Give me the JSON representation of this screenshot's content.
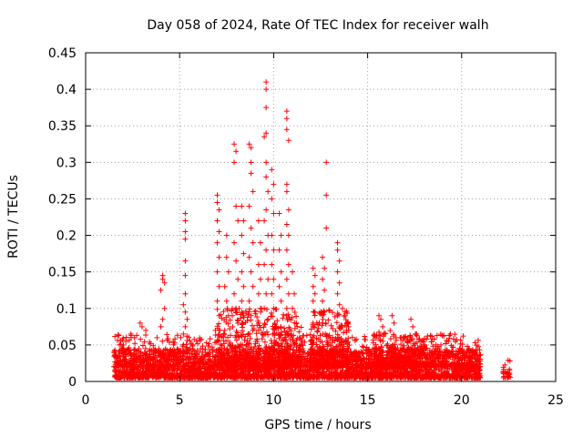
{
  "chart_data": {
    "type": "scatter",
    "title": "Day 058 of 2024, Rate Of TEC Index for receiver walh",
    "xlabel": "GPS time / hours",
    "ylabel": "ROTI / TECUs",
    "xlim": [
      0,
      25
    ],
    "ylim": [
      0,
      0.45
    ],
    "xticks": [
      "0",
      "5",
      "10",
      "15",
      "20",
      "25"
    ],
    "yticks": [
      "0",
      "0.05",
      "0.1",
      "0.15",
      "0.2",
      "0.25",
      "0.3",
      "0.35",
      "0.4",
      "0.45"
    ],
    "grid": true,
    "marker": "plus",
    "series_color": "#ff0000",
    "clusters": [
      {
        "x": [
          1.5,
          21.0
        ],
        "y": [
          0.005,
          0.045
        ],
        "count": 3200
      },
      {
        "x": [
          1.5,
          21.0
        ],
        "y": [
          0.02,
          0.065
        ],
        "count": 900
      },
      {
        "x": [
          7.0,
          11.5
        ],
        "y": [
          0.02,
          0.1
        ],
        "count": 500
      },
      {
        "x": [
          12.0,
          14.0
        ],
        "y": [
          0.02,
          0.1
        ],
        "count": 250
      },
      {
        "x": [
          15.3,
          18.2
        ],
        "y": [
          0.02,
          0.07
        ],
        "count": 200
      },
      {
        "x": [
          22.2,
          22.6
        ],
        "y": [
          0.005,
          0.03
        ],
        "count": 25
      }
    ],
    "points": [
      [
        4.1,
        0.145
      ],
      [
        4.1,
        0.14
      ],
      [
        4.2,
        0.135
      ],
      [
        4.0,
        0.125
      ],
      [
        4.2,
        0.1
      ],
      [
        4.1,
        0.085
      ],
      [
        4.0,
        0.075
      ],
      [
        3.8,
        0.06
      ],
      [
        2.9,
        0.08
      ],
      [
        3.0,
        0.075
      ],
      [
        3.2,
        0.07
      ],
      [
        2.6,
        0.06
      ],
      [
        5.3,
        0.23
      ],
      [
        5.3,
        0.22
      ],
      [
        5.3,
        0.205
      ],
      [
        5.3,
        0.195
      ],
      [
        5.3,
        0.165
      ],
      [
        5.3,
        0.145
      ],
      [
        5.3,
        0.12
      ],
      [
        5.2,
        0.105
      ],
      [
        5.3,
        0.095
      ],
      [
        5.4,
        0.085
      ],
      [
        5.3,
        0.075
      ],
      [
        5.2,
        0.065
      ],
      [
        7.0,
        0.255
      ],
      [
        7.0,
        0.245
      ],
      [
        7.1,
        0.235
      ],
      [
        7.0,
        0.22
      ],
      [
        7.1,
        0.205
      ],
      [
        7.0,
        0.19
      ],
      [
        7.1,
        0.17
      ],
      [
        7.0,
        0.15
      ],
      [
        7.1,
        0.13
      ],
      [
        7.0,
        0.11
      ],
      [
        7.1,
        0.09
      ],
      [
        6.9,
        0.07
      ],
      [
        7.5,
        0.2
      ],
      [
        7.5,
        0.17
      ],
      [
        7.6,
        0.15
      ],
      [
        7.4,
        0.13
      ],
      [
        7.5,
        0.11
      ],
      [
        7.6,
        0.09
      ],
      [
        7.4,
        0.07
      ],
      [
        7.9,
        0.325
      ],
      [
        8.0,
        0.315
      ],
      [
        7.9,
        0.3
      ],
      [
        8.0,
        0.24
      ],
      [
        8.1,
        0.22
      ],
      [
        7.9,
        0.19
      ],
      [
        8.0,
        0.165
      ],
      [
        8.1,
        0.14
      ],
      [
        7.9,
        0.12
      ],
      [
        8.0,
        0.1
      ],
      [
        8.1,
        0.08
      ],
      [
        8.3,
        0.24
      ],
      [
        8.4,
        0.22
      ],
      [
        8.3,
        0.2
      ],
      [
        8.4,
        0.175
      ],
      [
        8.3,
        0.15
      ],
      [
        8.4,
        0.13
      ],
      [
        8.3,
        0.11
      ],
      [
        8.4,
        0.09
      ],
      [
        8.7,
        0.325
      ],
      [
        8.8,
        0.32
      ],
      [
        8.8,
        0.3
      ],
      [
        8.8,
        0.285
      ],
      [
        8.9,
        0.26
      ],
      [
        8.7,
        0.24
      ],
      [
        8.8,
        0.21
      ],
      [
        8.9,
        0.19
      ],
      [
        8.7,
        0.17
      ],
      [
        8.8,
        0.15
      ],
      [
        8.9,
        0.13
      ],
      [
        8.7,
        0.11
      ],
      [
        8.8,
        0.09
      ],
      [
        9.2,
        0.22
      ],
      [
        9.3,
        0.19
      ],
      [
        9.2,
        0.16
      ],
      [
        9.3,
        0.14
      ],
      [
        9.2,
        0.12
      ],
      [
        9.3,
        0.1
      ],
      [
        9.2,
        0.08
      ],
      [
        9.6,
        0.41
      ],
      [
        9.6,
        0.4
      ],
      [
        9.6,
        0.375
      ],
      [
        9.6,
        0.34
      ],
      [
        9.5,
        0.335
      ],
      [
        9.6,
        0.3
      ],
      [
        9.6,
        0.28
      ],
      [
        9.7,
        0.26
      ],
      [
        9.6,
        0.235
      ],
      [
        9.5,
        0.22
      ],
      [
        9.7,
        0.2
      ],
      [
        9.6,
        0.18
      ],
      [
        9.5,
        0.16
      ],
      [
        9.7,
        0.14
      ],
      [
        9.6,
        0.12
      ],
      [
        9.5,
        0.1
      ],
      [
        9.7,
        0.085
      ],
      [
        9.9,
        0.29
      ],
      [
        10.0,
        0.27
      ],
      [
        9.9,
        0.25
      ],
      [
        10.0,
        0.23
      ],
      [
        9.9,
        0.2
      ],
      [
        10.0,
        0.18
      ],
      [
        9.9,
        0.16
      ],
      [
        10.0,
        0.14
      ],
      [
        9.9,
        0.12
      ],
      [
        10.0,
        0.1
      ],
      [
        10.3,
        0.23
      ],
      [
        10.4,
        0.2
      ],
      [
        10.3,
        0.18
      ],
      [
        10.4,
        0.15
      ],
      [
        10.3,
        0.13
      ],
      [
        10.4,
        0.11
      ],
      [
        10.7,
        0.37
      ],
      [
        10.7,
        0.36
      ],
      [
        10.7,
        0.345
      ],
      [
        10.8,
        0.33
      ],
      [
        10.7,
        0.27
      ],
      [
        10.7,
        0.26
      ],
      [
        10.8,
        0.235
      ],
      [
        10.7,
        0.215
      ],
      [
        10.8,
        0.2
      ],
      [
        10.7,
        0.18
      ],
      [
        10.8,
        0.16
      ],
      [
        10.7,
        0.14
      ],
      [
        10.8,
        0.12
      ],
      [
        10.7,
        0.1
      ],
      [
        10.8,
        0.085
      ],
      [
        11.0,
        0.15
      ],
      [
        11.1,
        0.12
      ],
      [
        11.0,
        0.1
      ],
      [
        11.2,
        0.08
      ],
      [
        12.1,
        0.155
      ],
      [
        12.2,
        0.145
      ],
      [
        12.1,
        0.13
      ],
      [
        12.2,
        0.12
      ],
      [
        12.1,
        0.11
      ],
      [
        12.2,
        0.095
      ],
      [
        12.1,
        0.08
      ],
      [
        12.6,
        0.17
      ],
      [
        12.7,
        0.155
      ],
      [
        12.6,
        0.14
      ],
      [
        12.7,
        0.125
      ],
      [
        12.6,
        0.11
      ],
      [
        12.7,
        0.095
      ],
      [
        12.6,
        0.08
      ],
      [
        12.8,
        0.3
      ],
      [
        12.8,
        0.255
      ],
      [
        12.8,
        0.21
      ],
      [
        13.4,
        0.19
      ],
      [
        13.4,
        0.18
      ],
      [
        13.5,
        0.165
      ],
      [
        13.4,
        0.15
      ],
      [
        13.5,
        0.135
      ],
      [
        13.4,
        0.12
      ],
      [
        13.5,
        0.105
      ],
      [
        13.4,
        0.09
      ],
      [
        13.5,
        0.075
      ],
      [
        13.8,
        0.09
      ],
      [
        13.9,
        0.08
      ],
      [
        14.0,
        0.07
      ],
      [
        15.6,
        0.09
      ],
      [
        15.7,
        0.085
      ],
      [
        15.8,
        0.075
      ],
      [
        16.3,
        0.09
      ],
      [
        16.4,
        0.08
      ],
      [
        17.3,
        0.085
      ],
      [
        17.4,
        0.075
      ],
      [
        17.6,
        0.065
      ],
      [
        18.9,
        0.05
      ],
      [
        19.3,
        0.055
      ],
      [
        19.4,
        0.065
      ],
      [
        20.3,
        0.048
      ],
      [
        20.4,
        0.045
      ]
    ]
  }
}
